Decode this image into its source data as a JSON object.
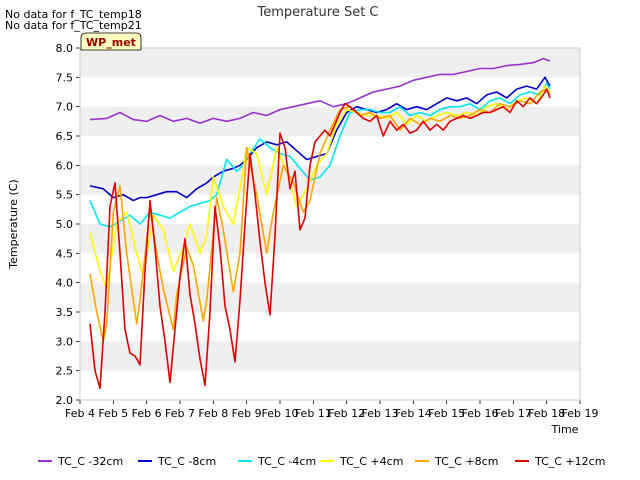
{
  "notes": [
    "No data for f_TC_temp18",
    "No data for f_TC_temp21"
  ],
  "badge": "WP_met",
  "chart_data": {
    "type": "line",
    "title": "Temperature Set C",
    "xlabel": "Time",
    "ylabel": "Temperature (C)",
    "ylim": [
      2.0,
      8.0
    ],
    "yticks": [
      2.0,
      2.5,
      3.0,
      3.5,
      4.0,
      4.5,
      5.0,
      5.5,
      6.0,
      6.5,
      7.0,
      7.5,
      8.0
    ],
    "xlim": [
      4,
      19
    ],
    "xticks": [
      {
        "x": 4,
        "label": "Feb 4"
      },
      {
        "x": 5,
        "label": "Feb 5"
      },
      {
        "x": 6,
        "label": "Feb 6"
      },
      {
        "x": 7,
        "label": "Feb 7"
      },
      {
        "x": 8,
        "label": "Feb 8"
      },
      {
        "x": 9,
        "label": "Feb 9"
      },
      {
        "x": 10,
        "label": "Feb 10"
      },
      {
        "x": 11,
        "label": "Feb 11"
      },
      {
        "x": 12,
        "label": "Feb 12"
      },
      {
        "x": 13,
        "label": "Feb 13"
      },
      {
        "x": 14,
        "label": "Feb 14"
      },
      {
        "x": 15,
        "label": "Feb 15"
      },
      {
        "x": 16,
        "label": "Feb 16"
      },
      {
        "x": 17,
        "label": "Feb 17"
      },
      {
        "x": 18,
        "label": "Feb 18"
      },
      {
        "x": 19,
        "label": "Feb 19"
      }
    ],
    "grid": "alternating horizontal bands",
    "legend_position": "bottom",
    "series": [
      {
        "name": "TC_C -32cm",
        "color": "#9932cc",
        "x": [
          4.3,
          4.8,
          5.2,
          5.6,
          6.0,
          6.4,
          6.8,
          7.2,
          7.6,
          8.0,
          8.4,
          8.8,
          9.2,
          9.6,
          10.0,
          10.4,
          10.8,
          11.2,
          11.6,
          12.0,
          12.4,
          12.8,
          13.2,
          13.6,
          14.0,
          14.4,
          14.8,
          15.2,
          15.6,
          16.0,
          16.4,
          16.8,
          17.2,
          17.6,
          17.9,
          18.1
        ],
        "y": [
          6.78,
          6.8,
          6.9,
          6.78,
          6.75,
          6.85,
          6.75,
          6.8,
          6.72,
          6.8,
          6.75,
          6.8,
          6.9,
          6.85,
          6.95,
          7.0,
          7.05,
          7.1,
          7.0,
          7.05,
          7.15,
          7.25,
          7.3,
          7.35,
          7.45,
          7.5,
          7.55,
          7.55,
          7.6,
          7.65,
          7.65,
          7.7,
          7.72,
          7.75,
          7.82,
          7.78
        ]
      },
      {
        "name": "TC_C -8cm",
        "color": "#0000cc",
        "x": [
          4.3,
          4.7,
          5.0,
          5.3,
          5.6,
          5.8,
          6.0,
          6.3,
          6.6,
          6.9,
          7.2,
          7.5,
          7.8,
          8.0,
          8.3,
          8.6,
          8.8,
          9.0,
          9.3,
          9.6,
          9.9,
          10.2,
          10.5,
          10.8,
          11.1,
          11.4,
          11.7,
          12.0,
          12.3,
          12.6,
          12.9,
          13.2,
          13.5,
          13.8,
          14.1,
          14.4,
          14.7,
          15.0,
          15.3,
          15.6,
          15.9,
          16.2,
          16.5,
          16.8,
          17.1,
          17.4,
          17.7,
          17.95,
          18.1
        ],
        "y": [
          5.65,
          5.6,
          5.45,
          5.5,
          5.4,
          5.45,
          5.45,
          5.5,
          5.55,
          5.55,
          5.45,
          5.6,
          5.7,
          5.8,
          5.9,
          5.95,
          6.0,
          6.1,
          6.3,
          6.4,
          6.35,
          6.4,
          6.25,
          6.1,
          6.15,
          6.2,
          6.6,
          6.9,
          7.0,
          6.95,
          6.9,
          6.95,
          7.05,
          6.95,
          7.0,
          6.95,
          7.05,
          7.15,
          7.1,
          7.15,
          7.05,
          7.2,
          7.25,
          7.15,
          7.3,
          7.35,
          7.3,
          7.5,
          7.35
        ]
      },
      {
        "name": "TC_C -4cm",
        "color": "#00e5ee",
        "x": [
          4.3,
          4.6,
          4.9,
          5.2,
          5.5,
          5.8,
          6.1,
          6.4,
          6.7,
          7.0,
          7.3,
          7.6,
          7.9,
          8.1,
          8.4,
          8.7,
          8.9,
          9.1,
          9.4,
          9.7,
          10.0,
          10.3,
          10.6,
          10.9,
          11.2,
          11.5,
          11.8,
          12.1,
          12.4,
          12.7,
          13.0,
          13.3,
          13.6,
          13.9,
          14.2,
          14.5,
          14.8,
          15.1,
          15.4,
          15.7,
          16.0,
          16.3,
          16.6,
          16.9,
          17.2,
          17.5,
          17.8,
          18.0,
          18.1
        ],
        "y": [
          5.4,
          5.0,
          4.95,
          5.05,
          5.15,
          5.0,
          5.2,
          5.15,
          5.1,
          5.2,
          5.3,
          5.35,
          5.4,
          5.5,
          6.1,
          5.9,
          6.0,
          6.2,
          6.45,
          6.3,
          6.2,
          6.15,
          5.95,
          5.75,
          5.8,
          6.0,
          6.5,
          6.9,
          6.95,
          6.95,
          6.9,
          6.9,
          7.0,
          6.85,
          6.9,
          6.85,
          6.95,
          7.0,
          7.0,
          7.05,
          6.95,
          7.1,
          7.15,
          7.05,
          7.2,
          7.25,
          7.2,
          7.4,
          7.3
        ]
      },
      {
        "name": "TC_C +4cm",
        "color": "#ffff00",
        "x": [
          4.3,
          4.6,
          4.8,
          5.1,
          5.4,
          5.7,
          5.9,
          6.2,
          6.5,
          6.8,
          7.1,
          7.3,
          7.6,
          7.8,
          8.0,
          8.3,
          8.6,
          8.8,
          9.0,
          9.3,
          9.6,
          9.9,
          10.2,
          10.5,
          10.8,
          11.1,
          11.4,
          11.7,
          12.0,
          12.3,
          12.6,
          12.9,
          13.2,
          13.5,
          13.8,
          14.1,
          14.4,
          14.7,
          15.0,
          15.3,
          15.6,
          15.9,
          16.2,
          16.5,
          16.8,
          17.1,
          17.4,
          17.7,
          17.95,
          18.1
        ],
        "y": [
          4.85,
          4.2,
          3.9,
          5.0,
          5.2,
          4.5,
          4.1,
          5.15,
          4.9,
          4.2,
          4.6,
          5.0,
          4.5,
          4.8,
          5.8,
          5.3,
          5.0,
          5.6,
          6.3,
          6.2,
          5.5,
          6.3,
          5.9,
          5.3,
          5.6,
          6.0,
          6.2,
          6.7,
          6.95,
          6.9,
          6.85,
          6.85,
          6.8,
          6.9,
          6.7,
          6.85,
          6.75,
          6.85,
          6.9,
          6.85,
          6.9,
          6.85,
          7.0,
          7.05,
          6.95,
          7.1,
          7.15,
          7.05,
          7.35,
          7.25
        ]
      },
      {
        "name": "TC_C +8cm",
        "color": "#ffa500",
        "x": [
          4.3,
          4.5,
          4.7,
          4.8,
          5.0,
          5.2,
          5.4,
          5.7,
          5.8,
          6.1,
          6.3,
          6.5,
          6.8,
          6.9,
          7.2,
          7.4,
          7.7,
          7.8,
          8.1,
          8.3,
          8.6,
          8.8,
          9.0,
          9.3,
          9.6,
          9.8,
          10.1,
          10.4,
          10.7,
          10.9,
          11.2,
          11.5,
          11.8,
          12.1,
          12.4,
          12.7,
          13.0,
          13.3,
          13.6,
          13.9,
          14.2,
          14.5,
          14.8,
          15.1,
          15.4,
          15.7,
          16.0,
          16.3,
          16.6,
          16.9,
          17.2,
          17.5,
          17.8,
          18.0,
          18.1
        ],
        "y": [
          4.15,
          3.5,
          3.0,
          3.3,
          5.2,
          5.65,
          4.5,
          3.3,
          3.7,
          5.25,
          4.5,
          3.9,
          3.2,
          3.8,
          4.6,
          4.3,
          3.35,
          3.7,
          5.45,
          4.9,
          3.85,
          4.5,
          6.3,
          5.5,
          4.5,
          5.2,
          6.0,
          5.7,
          5.2,
          5.4,
          6.2,
          6.6,
          6.95,
          7.0,
          6.85,
          6.9,
          6.8,
          6.85,
          6.6,
          6.8,
          6.7,
          6.8,
          6.75,
          6.85,
          6.8,
          6.85,
          6.95,
          6.9,
          7.05,
          7.0,
          7.1,
          7.05,
          7.25,
          7.3,
          7.2
        ]
      },
      {
        "name": "TC_C +12cm",
        "color": "#dd0000",
        "x": [
          4.3,
          4.45,
          4.6,
          4.75,
          4.9,
          5.05,
          5.2,
          5.35,
          5.5,
          5.65,
          5.8,
          5.95,
          6.1,
          6.25,
          6.4,
          6.55,
          6.7,
          6.85,
          7.0,
          7.15,
          7.3,
          7.45,
          7.6,
          7.75,
          7.9,
          8.05,
          8.2,
          8.35,
          8.5,
          8.65,
          8.8,
          8.95,
          9.1,
          9.25,
          9.4,
          9.55,
          9.7,
          9.85,
          10.0,
          10.15,
          10.3,
          10.45,
          10.6,
          10.75,
          10.9,
          11.05,
          11.2,
          11.35,
          11.5,
          11.65,
          11.8,
          11.95,
          12.1,
          12.3,
          12.5,
          12.7,
          12.9,
          13.1,
          13.3,
          13.5,
          13.7,
          13.9,
          14.1,
          14.3,
          14.5,
          14.7,
          14.9,
          15.1,
          15.3,
          15.5,
          15.7,
          15.9,
          16.1,
          16.3,
          16.5,
          16.7,
          16.9,
          17.1,
          17.3,
          17.5,
          17.7,
          17.9,
          18.0,
          18.1
        ],
        "y": [
          3.3,
          2.5,
          2.2,
          3.5,
          5.3,
          5.7,
          4.5,
          3.2,
          2.8,
          2.75,
          2.6,
          4.2,
          5.4,
          4.6,
          3.6,
          3.0,
          2.3,
          3.2,
          4.1,
          4.75,
          3.8,
          3.3,
          2.7,
          2.25,
          3.5,
          5.3,
          4.6,
          3.6,
          3.2,
          2.65,
          3.7,
          5.0,
          6.2,
          5.5,
          4.7,
          4.0,
          3.45,
          4.8,
          6.55,
          6.3,
          5.6,
          5.9,
          4.9,
          5.1,
          6.0,
          6.4,
          6.5,
          6.6,
          6.5,
          6.7,
          6.9,
          7.05,
          7.0,
          6.9,
          6.8,
          6.75,
          6.85,
          6.5,
          6.75,
          6.6,
          6.7,
          6.55,
          6.6,
          6.75,
          6.6,
          6.7,
          6.6,
          6.75,
          6.8,
          6.85,
          6.8,
          6.85,
          6.9,
          6.9,
          6.95,
          7.0,
          6.9,
          7.1,
          7.0,
          7.15,
          7.05,
          7.2,
          7.3,
          7.15
        ]
      }
    ]
  }
}
